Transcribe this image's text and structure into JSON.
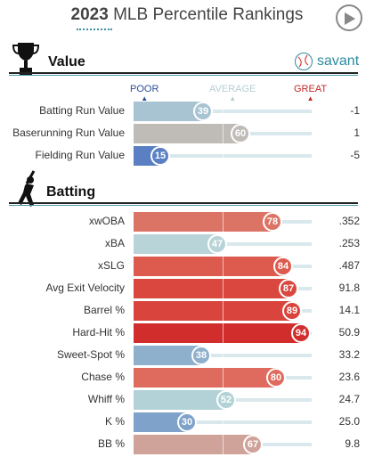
{
  "header": {
    "year": "2023",
    "title": "MLB Percentile Rankings"
  },
  "brand": {
    "name": "savant"
  },
  "scale": {
    "poor": "POOR",
    "average": "AVERAGE",
    "great": "GREAT"
  },
  "sections": [
    {
      "title": "Value",
      "icon": "trophy-icon"
    },
    {
      "title": "Batting",
      "icon": "batter-icon"
    }
  ],
  "value_rows": [
    {
      "label": "Batting Run Value",
      "percentile": 39,
      "value": "-1",
      "color": "#a8c3d1"
    },
    {
      "label": "Baserunning Run Value",
      "percentile": 60,
      "value": "1",
      "color": "#bfbcb8"
    },
    {
      "label": "Fielding Run Value",
      "percentile": 15,
      "value": "-5",
      "color": "#5b7fc3"
    }
  ],
  "batting_rows": [
    {
      "label": "xwOBA",
      "percentile": 78,
      "value": ".352",
      "color": "#dc7466"
    },
    {
      "label": "xBA",
      "percentile": 47,
      "value": ".253",
      "color": "#b9d4d8"
    },
    {
      "label": "xSLG",
      "percentile": 84,
      "value": ".487",
      "color": "#dd5a4f"
    },
    {
      "label": "Avg Exit Velocity",
      "percentile": 87,
      "value": "91.8",
      "color": "#d9473f"
    },
    {
      "label": "Barrel %",
      "percentile": 89,
      "value": "14.1",
      "color": "#d9453d"
    },
    {
      "label": "Hard-Hit %",
      "percentile": 94,
      "value": "50.9",
      "color": "#d22d2d"
    },
    {
      "label": "Sweet-Spot %",
      "percentile": 38,
      "value": "33.2",
      "color": "#8fb0cc"
    },
    {
      "label": "Chase %",
      "percentile": 80,
      "value": "23.6",
      "color": "#de6b5e"
    },
    {
      "label": "Whiff %",
      "percentile": 52,
      "value": "24.7",
      "color": "#b3d2d7"
    },
    {
      "label": "K %",
      "percentile": 30,
      "value": "25.0",
      "color": "#7ea2c9"
    },
    {
      "label": "BB %",
      "percentile": 67,
      "value": "9.8",
      "color": "#cfa39a"
    }
  ],
  "accent": {
    "poor": "#2c4f9a",
    "average": "#b7cfd2",
    "great": "#c62828"
  }
}
